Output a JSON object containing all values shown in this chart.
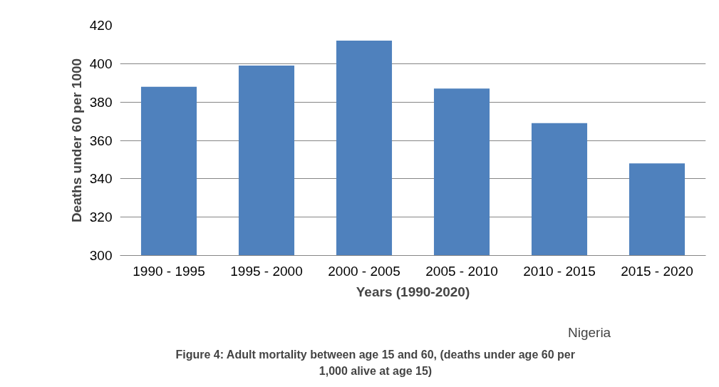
{
  "chart_data": {
    "type": "bar",
    "categories": [
      "1990 - 1995",
      "1995 - 2000",
      "2000 - 2005",
      "2005 - 2010",
      "2010 - 2015",
      "2015 - 2020"
    ],
    "series": [
      {
        "name": "Nigeria",
        "color": "#4f81bd",
        "values": [
          388,
          399,
          412,
          387,
          369,
          348
        ]
      }
    ],
    "ylim": [
      300,
      420
    ],
    "yticks": [
      300,
      320,
      340,
      360,
      380,
      400,
      420
    ],
    "grid": "y",
    "legend": "bottom",
    "xlabel": "Years (1990-2020)",
    "ylabel": "Deaths under 60 per 1000",
    "annotations": [
      "Figure 4: Adult mortality between age 15 and 60, (deaths under age 60 per 1,000 alive at age 15)"
    ]
  }
}
